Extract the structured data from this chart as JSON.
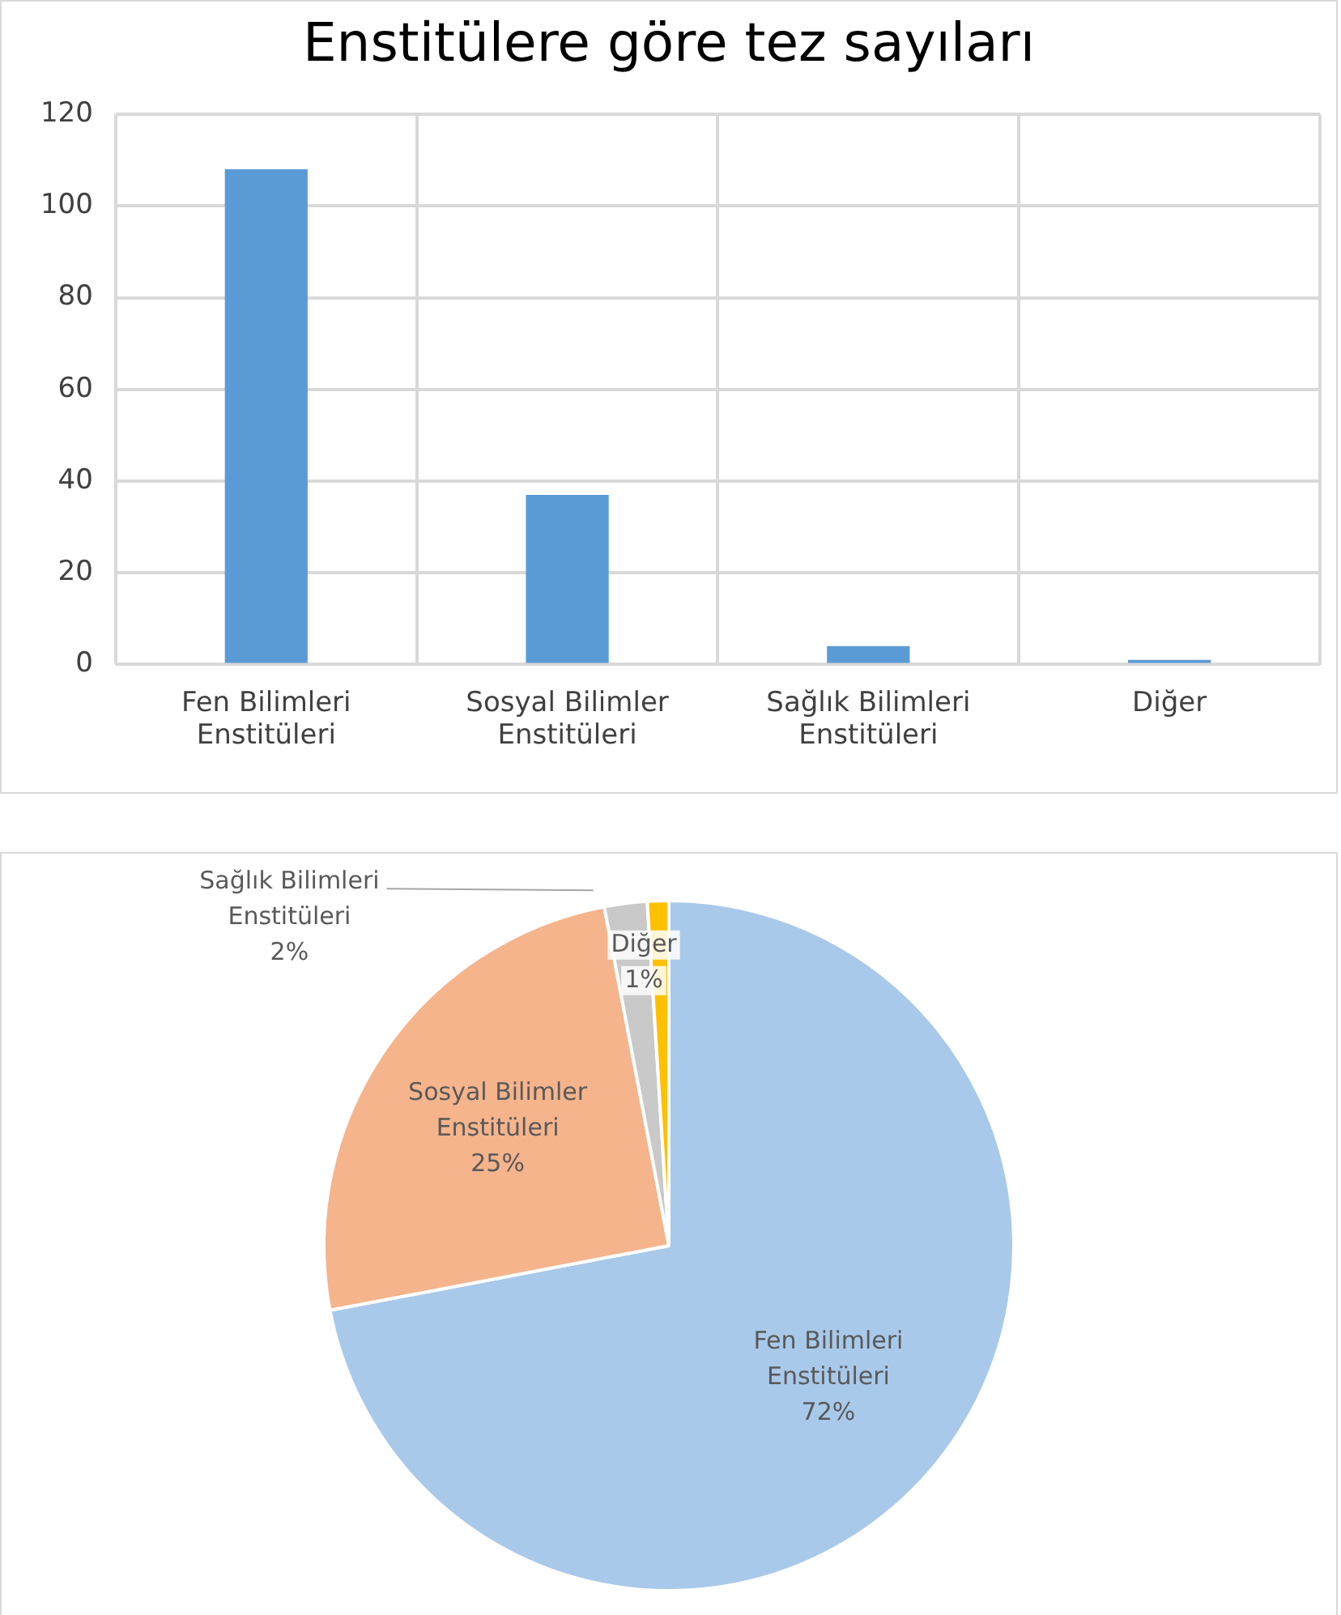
{
  "chart_data": [
    {
      "type": "bar",
      "title": "Enstitülere göre tez sayıları",
      "categories": [
        "Fen Bilimleri Enstitüleri",
        "Sosyal Bilimler Enstitüleri",
        "Sağlık Bilimleri Enstitüleri",
        "Diğer"
      ],
      "values": [
        108,
        37,
        4,
        1
      ],
      "color": "#5b9bd5",
      "ylim": [
        0,
        120
      ],
      "yticks": [
        0,
        20,
        40,
        60,
        80,
        100,
        120
      ],
      "grid": true,
      "legend": false
    },
    {
      "type": "pie",
      "categories": [
        "Fen Bilimleri Enstitüleri",
        "Sosyal Bilimler Enstitüleri",
        "Sağlık Bilimleri Enstitüleri",
        "Diğer"
      ],
      "values": [
        72,
        25,
        2,
        1
      ],
      "colors": [
        "#a9c9ea",
        "#f5b48c",
        "#c9c9c9",
        "#ffc000"
      ],
      "value_labels": [
        "72%",
        "25%",
        "2%",
        "1%"
      ],
      "legend": false
    }
  ]
}
